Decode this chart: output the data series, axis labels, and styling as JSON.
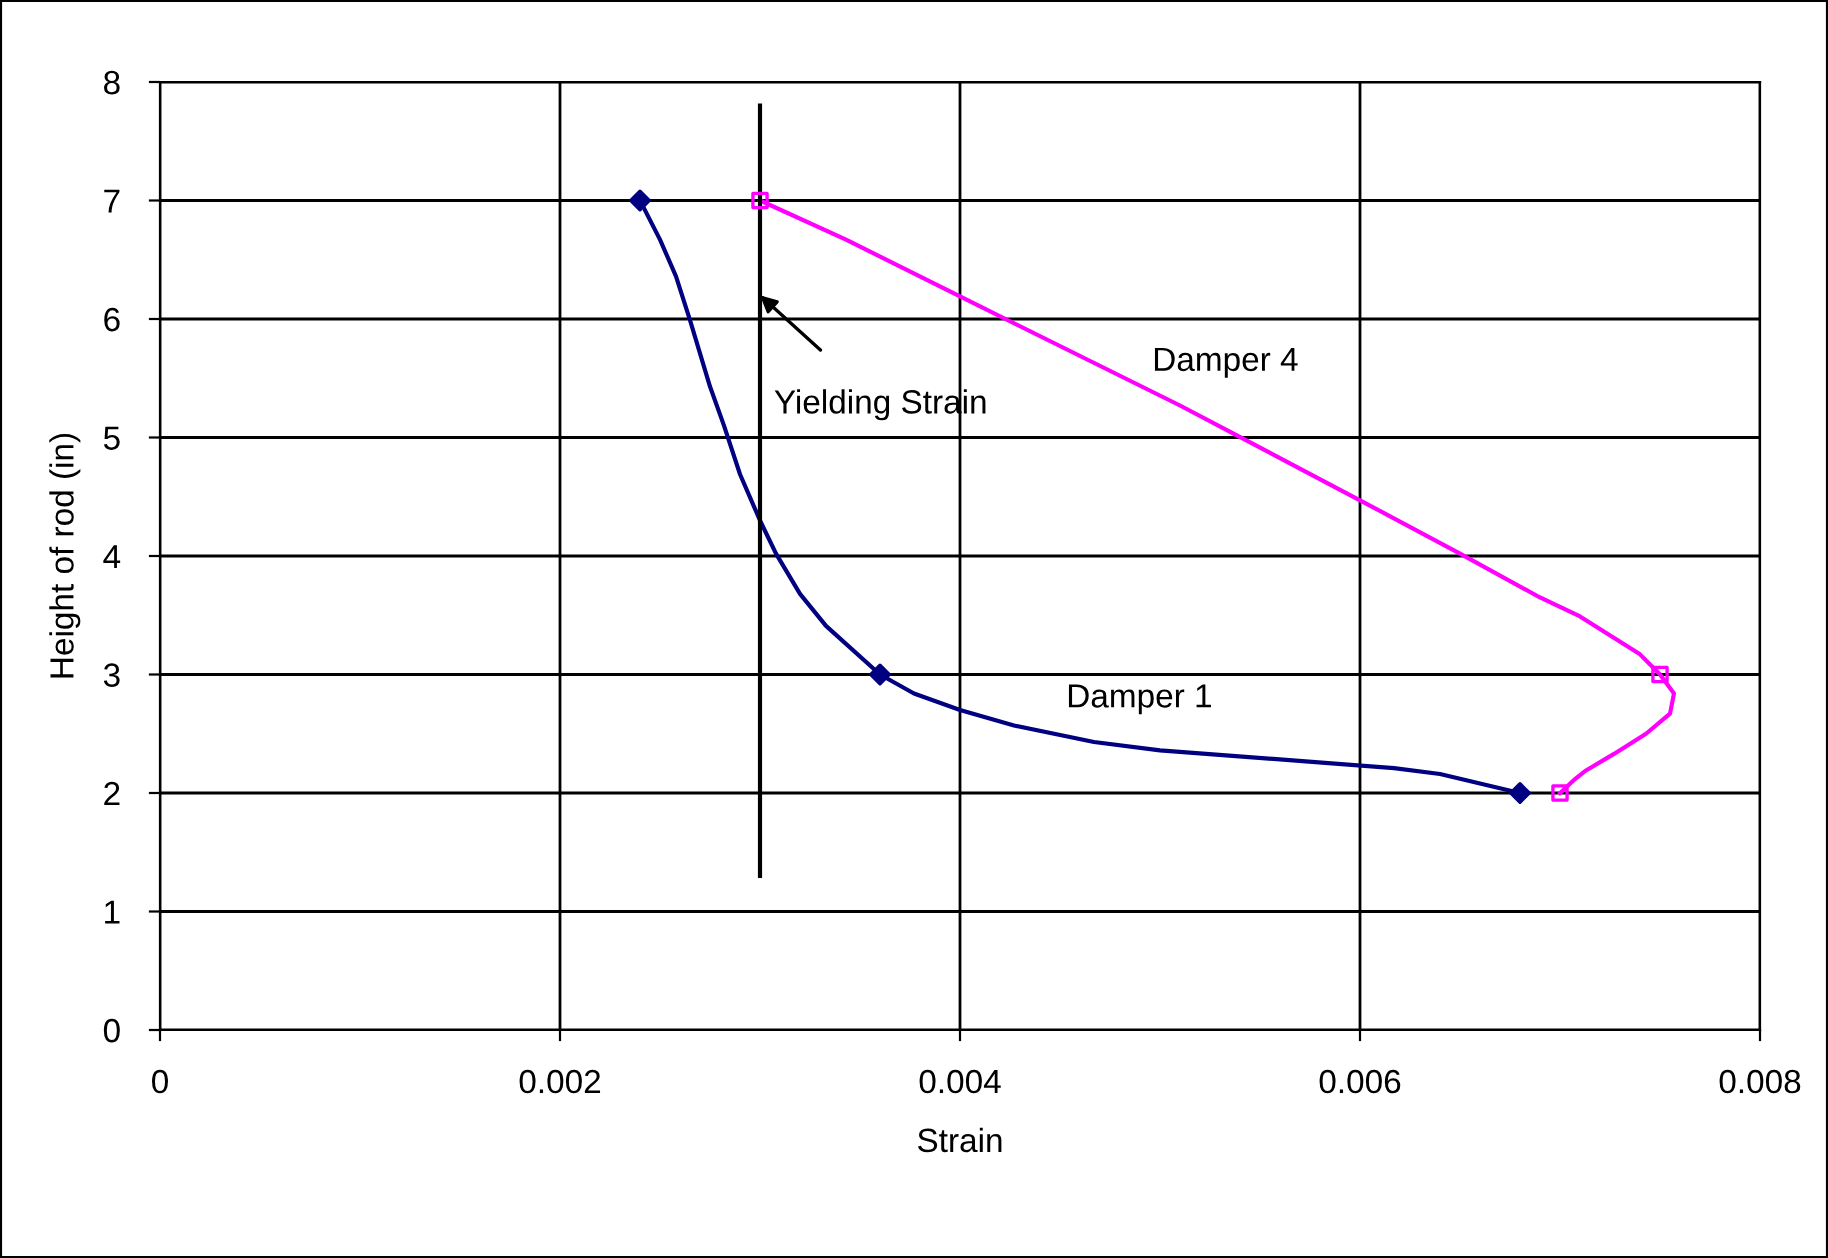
{
  "chart_data": {
    "type": "line",
    "xlabel": "Strain",
    "ylabel": "Height of rod (in)",
    "xlim": [
      0,
      0.008
    ],
    "xticks": [
      0,
      0.002,
      0.004,
      0.006,
      0.008
    ],
    "ylim": [
      0,
      8
    ],
    "yticks": [
      0,
      1,
      2,
      3,
      4,
      5,
      6,
      7,
      8
    ],
    "grid": true,
    "legend": false,
    "marker": "none",
    "line_style": "solid",
    "series": [
      {
        "name": "Damper 1",
        "color": "#000080",
        "x": [
          0.0024,
          0.0025,
          0.00258,
          0.00265,
          0.00275,
          0.00282,
          0.0029,
          0.003,
          0.00308,
          0.0032,
          0.00333,
          0.0036,
          0.00377,
          0.004,
          0.00427,
          0.00467,
          0.005,
          0.00617,
          0.0064,
          0.0068
        ],
        "values": [
          7.0,
          6.67,
          6.36,
          5.99,
          5.43,
          5.1,
          4.69,
          4.3,
          4.02,
          3.68,
          3.41,
          3.0,
          2.84,
          2.7,
          2.57,
          2.43,
          2.36,
          2.21,
          2.16,
          2.0
        ]
      },
      {
        "name": "Damper 4",
        "color": "#ff00ff",
        "x": [
          0.003,
          0.00343,
          0.004,
          0.0051,
          0.00537,
          0.006,
          0.0065,
          0.0069,
          0.0071,
          0.0074,
          0.0075,
          0.00757,
          0.00755,
          0.00743,
          0.00727,
          0.00713,
          0.00707,
          0.007
        ],
        "values": [
          7.0,
          6.67,
          6.19,
          5.27,
          5.03,
          4.47,
          4.02,
          3.65,
          3.49,
          3.17,
          3.0,
          2.84,
          2.67,
          2.5,
          2.33,
          2.19,
          2.11,
          2.0
        ]
      },
      {
        "type": "scatter",
        "marker": "diamond",
        "color": "#000080",
        "x": [
          0.0024,
          0.0036,
          0.0068
        ],
        "values": [
          7,
          3,
          2
        ]
      },
      {
        "type": "scatter",
        "marker": "square",
        "color": "#ff00ff",
        "x": [
          0.003,
          0.0075,
          0.007
        ],
        "values": [
          7,
          3,
          2
        ]
      },
      {
        "color": "#000000",
        "x": [
          0.003,
          0.003
        ],
        "values": [
          1.3,
          7.8
        ]
      }
    ],
    "annotations": [
      {
        "text": "Yielding Strain",
        "x": 0.003,
        "y": 6.2
      }
    ]
  }
}
